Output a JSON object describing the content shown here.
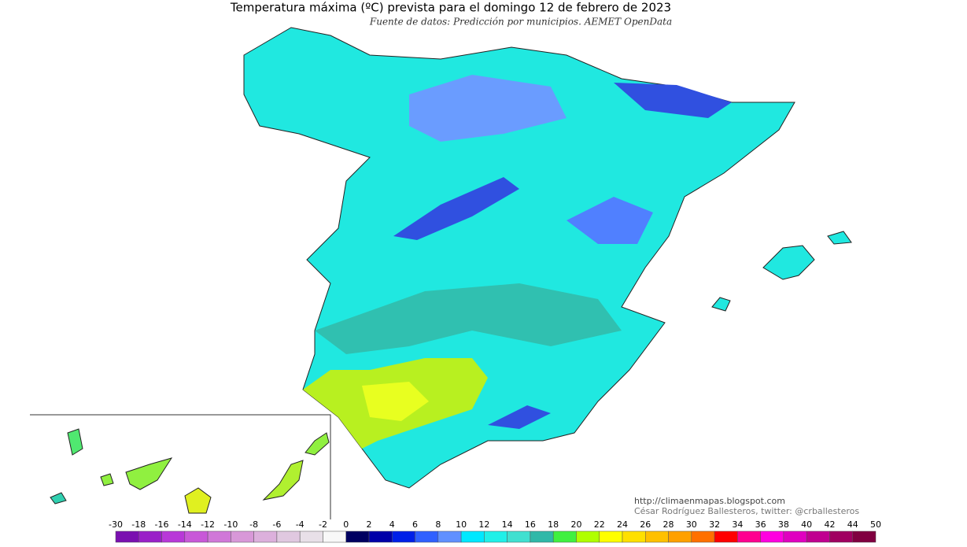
{
  "header": {
    "title": "Temperatura máxima (ºC) prevista para el domingo 12 de febrero de 2023",
    "source": "Fuente de datos: Predicción por municipios. AEMET OpenData"
  },
  "credits": {
    "url": "http://climaenmapas.blogspot.com",
    "author": "César Rodríguez Ballesteros, twitter: @crballesteros"
  },
  "legend": {
    "ticks": [
      -30,
      -18,
      -16,
      -14,
      -12,
      -10,
      -8,
      -6,
      -4,
      -2,
      0,
      2,
      4,
      6,
      8,
      10,
      12,
      14,
      16,
      18,
      20,
      22,
      24,
      26,
      28,
      30,
      32,
      34,
      36,
      38,
      40,
      42,
      44,
      50
    ],
    "colors": [
      "#7a10b0",
      "#9a20c8",
      "#b838d8",
      "#c858d8",
      "#d078d8",
      "#d898d8",
      "#dcb0dc",
      "#e0c8e0",
      "#e8e0e8",
      "#f8f8f8",
      "#000060",
      "#0000a8",
      "#0020e8",
      "#3060ff",
      "#6090ff",
      "#00e8ff",
      "#20f0e8",
      "#40e0d0",
      "#30b8a8",
      "#40f040",
      "#b0ff00",
      "#ffff00",
      "#ffe000",
      "#ffc000",
      "#ffa000",
      "#ff7000",
      "#ff0000",
      "#ff0090",
      "#ff00e0",
      "#e000c0",
      "#c00090",
      "#a00060",
      "#800040"
    ]
  }
}
